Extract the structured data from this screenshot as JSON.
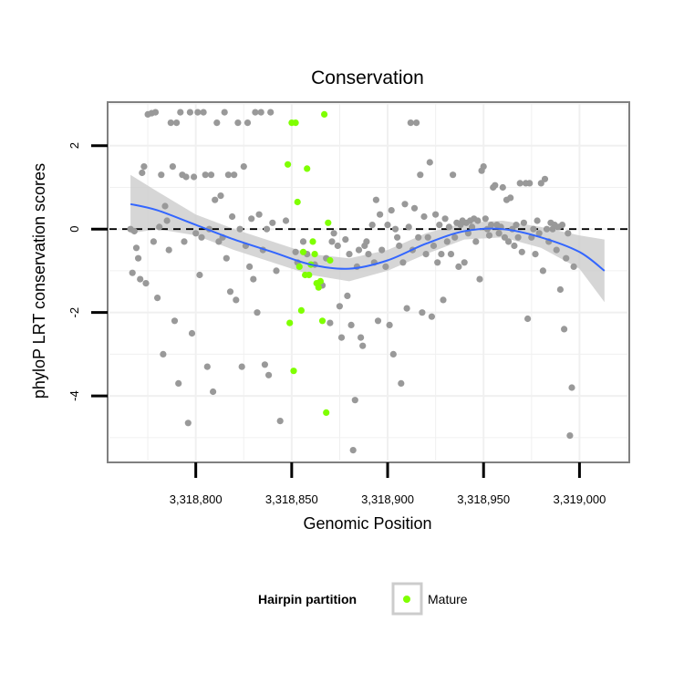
{
  "chart_data": {
    "type": "scatter",
    "title": "Conservation",
    "xlabel": "Genomic Position",
    "ylabel": "phyloP LRT conservation scores",
    "xlim": [
      3318755,
      3319025
    ],
    "ylim": [
      -5.55,
      3.0
    ],
    "x_ticks": [
      {
        "value": 3318800,
        "label": "3,318,800"
      },
      {
        "value": 3318850,
        "label": "3,318,850"
      },
      {
        "value": 3318900,
        "label": "3,318,900"
      },
      {
        "value": 3318950,
        "label": "3,318,950"
      },
      {
        "value": 3319000,
        "label": "3,319,000"
      }
    ],
    "y_ticks": [
      {
        "value": 2,
        "label": "2"
      },
      {
        "value": 0,
        "label": "0"
      },
      {
        "value": -2,
        "label": "-2"
      },
      {
        "value": -4,
        "label": "-4"
      }
    ],
    "grid": true,
    "reference_line": {
      "y": 0,
      "style": "dashed"
    },
    "legend": {
      "title": "Hairpin partition",
      "position": "bottom",
      "entries": [
        {
          "label": "Mature",
          "color": "#7fff00"
        }
      ]
    },
    "colors": {
      "other": "#999999",
      "mature": "#7fff00",
      "smooth": "#3366ff",
      "ribbon": "#cccccc"
    },
    "series": [
      {
        "role": "other",
        "points": [
          [
            3318766,
            0.0
          ],
          [
            3318767,
            -1.05
          ],
          [
            3318768,
            -0.05
          ],
          [
            3318769,
            -0.45
          ],
          [
            3318770,
            -0.7
          ],
          [
            3318771,
            -1.2
          ],
          [
            3318772,
            1.35
          ],
          [
            3318773,
            1.5
          ],
          [
            3318774,
            -1.3
          ],
          [
            3318775,
            2.75
          ],
          [
            3318777,
            2.78
          ],
          [
            3318778,
            -0.3
          ],
          [
            3318779,
            2.8
          ],
          [
            3318780,
            -1.65
          ],
          [
            3318781,
            0.05
          ],
          [
            3318782,
            1.3
          ],
          [
            3318783,
            -3.0
          ],
          [
            3318784,
            0.55
          ],
          [
            3318785,
            0.2
          ],
          [
            3318786,
            -0.5
          ],
          [
            3318787,
            2.55
          ],
          [
            3318788,
            1.5
          ],
          [
            3318789,
            -2.2
          ],
          [
            3318790,
            2.55
          ],
          [
            3318791,
            -3.7
          ],
          [
            3318792,
            2.8
          ],
          [
            3318793,
            1.3
          ],
          [
            3318794,
            -0.3
          ],
          [
            3318795,
            1.25
          ],
          [
            3318796,
            -4.65
          ],
          [
            3318797,
            2.8
          ],
          [
            3318798,
            -2.5
          ],
          [
            3318799,
            1.25
          ],
          [
            3318800,
            -0.1
          ],
          [
            3318801,
            2.8
          ],
          [
            3318802,
            -1.1
          ],
          [
            3318803,
            -0.2
          ],
          [
            3318804,
            2.8
          ],
          [
            3318805,
            1.3
          ],
          [
            3318806,
            -3.3
          ],
          [
            3318807,
            0.0
          ],
          [
            3318808,
            1.3
          ],
          [
            3318809,
            -3.9
          ],
          [
            3318810,
            0.7
          ],
          [
            3318811,
            2.55
          ],
          [
            3318812,
            -0.3
          ],
          [
            3318813,
            0.8
          ],
          [
            3318814,
            -0.2
          ],
          [
            3318815,
            2.8
          ],
          [
            3318816,
            -0.7
          ],
          [
            3318817,
            1.3
          ],
          [
            3318818,
            -1.5
          ],
          [
            3318819,
            0.3
          ],
          [
            3318820,
            1.3
          ],
          [
            3318821,
            -1.7
          ],
          [
            3318822,
            2.55
          ],
          [
            3318823,
            0.0
          ],
          [
            3318824,
            -3.3
          ],
          [
            3318825,
            1.5
          ],
          [
            3318826,
            -0.4
          ],
          [
            3318827,
            2.55
          ],
          [
            3318828,
            -0.9
          ],
          [
            3318829,
            0.25
          ],
          [
            3318830,
            -1.2
          ],
          [
            3318831,
            2.8
          ],
          [
            3318832,
            -2.0
          ],
          [
            3318833,
            0.35
          ],
          [
            3318834,
            2.8
          ],
          [
            3318835,
            -0.5
          ],
          [
            3318836,
            -3.25
          ],
          [
            3318837,
            0.0
          ],
          [
            3318838,
            -3.5
          ],
          [
            3318839,
            2.8
          ],
          [
            3318840,
            0.15
          ],
          [
            3318842,
            -1.0
          ],
          [
            3318844,
            -4.6
          ],
          [
            3318847,
            0.2
          ],
          [
            3318852,
            -0.55
          ],
          [
            3318853,
            -0.8
          ],
          [
            3318856,
            -0.3
          ],
          [
            3318858,
            -0.6
          ],
          [
            3318862,
            -0.85
          ],
          [
            3318866,
            -1.35
          ],
          [
            3318868,
            -0.7
          ],
          [
            3318870,
            -2.25
          ],
          [
            3318871,
            -0.3
          ],
          [
            3318872,
            -0.1
          ],
          [
            3318874,
            -0.4
          ],
          [
            3318875,
            -1.85
          ],
          [
            3318876,
            -2.6
          ],
          [
            3318878,
            -0.25
          ],
          [
            3318879,
            -1.6
          ],
          [
            3318880,
            -0.6
          ],
          [
            3318881,
            -2.3
          ],
          [
            3318882,
            -5.3
          ],
          [
            3318883,
            -4.1
          ],
          [
            3318884,
            -0.9
          ],
          [
            3318885,
            -0.5
          ],
          [
            3318886,
            -2.6
          ],
          [
            3318887,
            -2.8
          ],
          [
            3318888,
            -0.4
          ],
          [
            3318889,
            -0.3
          ],
          [
            3318890,
            -0.6
          ],
          [
            3318892,
            0.1
          ],
          [
            3318893,
            -0.8
          ],
          [
            3318894,
            0.7
          ],
          [
            3318895,
            -2.2
          ],
          [
            3318896,
            0.35
          ],
          [
            3318897,
            -0.5
          ],
          [
            3318899,
            -0.9
          ],
          [
            3318900,
            0.1
          ],
          [
            3318901,
            -2.3
          ],
          [
            3318902,
            0.45
          ],
          [
            3318903,
            -3.0
          ],
          [
            3318904,
            0.0
          ],
          [
            3318905,
            -0.2
          ],
          [
            3318906,
            -0.4
          ],
          [
            3318907,
            -3.7
          ],
          [
            3318908,
            -0.8
          ],
          [
            3318909,
            0.6
          ],
          [
            3318910,
            -1.9
          ],
          [
            3318911,
            0.05
          ],
          [
            3318912,
            2.55
          ],
          [
            3318913,
            -0.5
          ],
          [
            3318914,
            0.5
          ],
          [
            3318915,
            2.55
          ],
          [
            3318916,
            -0.2
          ],
          [
            3318917,
            1.3
          ],
          [
            3318918,
            -2.0
          ],
          [
            3318919,
            0.3
          ],
          [
            3318920,
            -0.6
          ],
          [
            3318921,
            -0.2
          ],
          [
            3318922,
            1.6
          ],
          [
            3318923,
            -2.1
          ],
          [
            3318924,
            -0.4
          ],
          [
            3318925,
            0.35
          ],
          [
            3318926,
            -0.8
          ],
          [
            3318927,
            0.1
          ],
          [
            3318928,
            -0.6
          ],
          [
            3318929,
            -1.7
          ],
          [
            3318930,
            0.25
          ],
          [
            3318931,
            -0.3
          ],
          [
            3318932,
            0.05
          ],
          [
            3318933,
            -0.6
          ],
          [
            3318934,
            1.3
          ],
          [
            3318935,
            -0.2
          ],
          [
            3318936,
            0.15
          ],
          [
            3318937,
            -0.9
          ],
          [
            3318938,
            0.1
          ],
          [
            3318939,
            0.2
          ],
          [
            3318940,
            -0.8
          ],
          [
            3318941,
            0.15
          ],
          [
            3318942,
            -0.1
          ],
          [
            3318943,
            0.2
          ],
          [
            3318944,
            0.05
          ],
          [
            3318945,
            0.25
          ],
          [
            3318946,
            -0.3
          ],
          [
            3318947,
            0.2
          ],
          [
            3318948,
            -1.2
          ],
          [
            3318949,
            1.4
          ],
          [
            3318950,
            1.5
          ],
          [
            3318951,
            0.25
          ],
          [
            3318952,
            0.0
          ],
          [
            3318953,
            -0.15
          ],
          [
            3318954,
            0.1
          ],
          [
            3318955,
            1.0
          ],
          [
            3318956,
            1.05
          ],
          [
            3318957,
            0.1
          ],
          [
            3318958,
            -0.1
          ],
          [
            3318959,
            0.05
          ],
          [
            3318960,
            1.0
          ],
          [
            3318961,
            -0.2
          ],
          [
            3318962,
            0.7
          ],
          [
            3318963,
            -0.3
          ],
          [
            3318964,
            0.75
          ],
          [
            3318965,
            0.0
          ],
          [
            3318966,
            -0.4
          ],
          [
            3318967,
            0.1
          ],
          [
            3318968,
            -0.2
          ],
          [
            3318969,
            1.1
          ],
          [
            3318970,
            -0.55
          ],
          [
            3318971,
            0.15
          ],
          [
            3318972,
            1.1
          ],
          [
            3318973,
            -2.15
          ],
          [
            3318974,
            1.1
          ],
          [
            3318975,
            -0.2
          ],
          [
            3318976,
            0.0
          ],
          [
            3318977,
            -0.6
          ],
          [
            3318978,
            0.2
          ],
          [
            3318979,
            -0.1
          ],
          [
            3318980,
            1.1
          ],
          [
            3318981,
            -1.0
          ],
          [
            3318982,
            1.2
          ],
          [
            3318983,
            0.0
          ],
          [
            3318984,
            -0.3
          ],
          [
            3318985,
            0.15
          ],
          [
            3318986,
            0.0
          ],
          [
            3318987,
            0.1
          ],
          [
            3318988,
            -0.5
          ],
          [
            3318989,
            0.05
          ],
          [
            3318990,
            -1.45
          ],
          [
            3318991,
            0.1
          ],
          [
            3318992,
            -2.4
          ],
          [
            3318993,
            -0.7
          ],
          [
            3318994,
            -0.1
          ],
          [
            3318995,
            -4.95
          ],
          [
            3318996,
            -3.8
          ],
          [
            3318997,
            -0.9
          ]
        ]
      },
      {
        "role": "mature",
        "points": [
          [
            3318848,
            1.55
          ],
          [
            3318849,
            -2.25
          ],
          [
            3318850,
            2.55
          ],
          [
            3318851,
            -3.4
          ],
          [
            3318852,
            2.55
          ],
          [
            3318853,
            0.65
          ],
          [
            3318854,
            -0.9
          ],
          [
            3318855,
            -1.95
          ],
          [
            3318856,
            -0.55
          ],
          [
            3318857,
            -1.1
          ],
          [
            3318858,
            1.45
          ],
          [
            3318859,
            -1.1
          ],
          [
            3318860,
            -0.85
          ],
          [
            3318861,
            -0.3
          ],
          [
            3318862,
            -0.6
          ],
          [
            3318863,
            -1.3
          ],
          [
            3318864,
            -1.4
          ],
          [
            3318865,
            -1.25
          ],
          [
            3318866,
            -2.2
          ],
          [
            3318867,
            2.75
          ],
          [
            3318868,
            -4.4
          ],
          [
            3318869,
            0.15
          ],
          [
            3318870,
            -0.75
          ]
        ]
      }
    ],
    "smooth": {
      "x": [
        3318766,
        3318780,
        3318800,
        3318820,
        3318840,
        3318860,
        3318880,
        3318900,
        3318920,
        3318940,
        3318960,
        3318980,
        3319000,
        3319013
      ],
      "y": [
        0.6,
        0.45,
        0.1,
        -0.25,
        -0.55,
        -0.85,
        -0.95,
        -0.75,
        -0.35,
        -0.05,
        0.0,
        -0.2,
        -0.55,
        -1.0
      ],
      "lower": [
        -0.1,
        0.0,
        -0.15,
        -0.5,
        -0.8,
        -1.1,
        -1.25,
        -1.0,
        -0.6,
        -0.25,
        -0.2,
        -0.45,
        -0.95,
        -1.75
      ],
      "upper": [
        1.3,
        0.9,
        0.35,
        0.0,
        -0.3,
        -0.6,
        -0.7,
        -0.5,
        -0.1,
        0.15,
        0.2,
        0.05,
        -0.15,
        -0.25
      ]
    }
  }
}
